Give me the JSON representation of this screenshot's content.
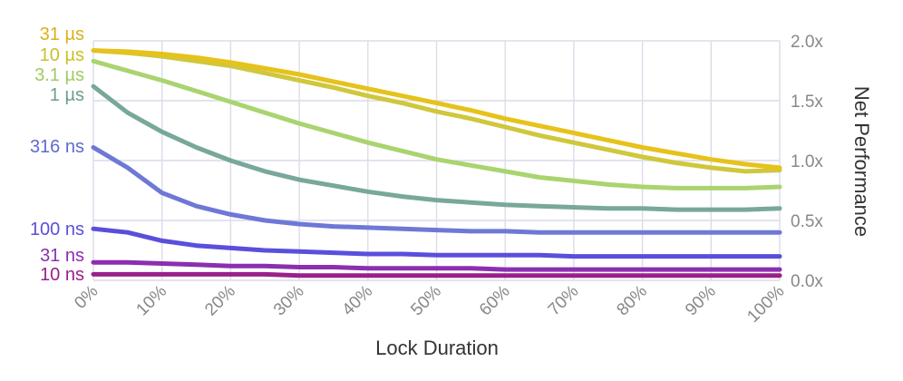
{
  "chart_data": {
    "type": "line",
    "xlabel": "Lock Duration",
    "ylabel": "Net Performance",
    "x_unit": "percent",
    "x": [
      0,
      5,
      10,
      15,
      20,
      25,
      30,
      35,
      40,
      45,
      50,
      55,
      60,
      65,
      70,
      75,
      80,
      85,
      90,
      95,
      100
    ],
    "x_tick_labels": [
      "0%",
      "10%",
      "20%",
      "30%",
      "40%",
      "50%",
      "60%",
      "70%",
      "80%",
      "90%",
      "100%"
    ],
    "y_tick_labels": [
      "0.0x",
      "0.5x",
      "1.0x",
      "1.5x",
      "2.0x"
    ],
    "ylim": [
      0,
      2.0
    ],
    "grid": true,
    "series": [
      {
        "name": "31 µs",
        "color": "#e6c21b",
        "values": [
          1.92,
          1.91,
          1.89,
          1.86,
          1.82,
          1.77,
          1.72,
          1.66,
          1.6,
          1.54,
          1.48,
          1.42,
          1.35,
          1.29,
          1.23,
          1.17,
          1.11,
          1.06,
          1.01,
          0.97,
          0.94
        ]
      },
      {
        "name": "10 µs",
        "color": "#cfc73c",
        "values": [
          1.92,
          1.9,
          1.87,
          1.83,
          1.79,
          1.73,
          1.67,
          1.61,
          1.54,
          1.48,
          1.41,
          1.35,
          1.28,
          1.21,
          1.15,
          1.09,
          1.03,
          0.98,
          0.94,
          0.91,
          0.92
        ]
      },
      {
        "name": "3.1 µs",
        "color": "#a9d46f",
        "values": [
          1.83,
          1.75,
          1.67,
          1.58,
          1.49,
          1.4,
          1.31,
          1.23,
          1.15,
          1.08,
          1.01,
          0.96,
          0.91,
          0.86,
          0.83,
          0.8,
          0.78,
          0.77,
          0.77,
          0.77,
          0.78
        ]
      },
      {
        "name": "1 µs",
        "color": "#78a89a",
        "values": [
          1.62,
          1.4,
          1.24,
          1.11,
          1.0,
          0.91,
          0.84,
          0.79,
          0.74,
          0.7,
          0.67,
          0.65,
          0.63,
          0.62,
          0.61,
          0.6,
          0.6,
          0.59,
          0.59,
          0.59,
          0.6
        ]
      },
      {
        "name": "316 ns",
        "color": "#6e78d6",
        "values": [
          1.11,
          0.94,
          0.73,
          0.62,
          0.55,
          0.5,
          0.47,
          0.45,
          0.44,
          0.43,
          0.42,
          0.41,
          0.41,
          0.4,
          0.4,
          0.4,
          0.4,
          0.4,
          0.4,
          0.4,
          0.4
        ]
      },
      {
        "name": "100 ns",
        "color": "#5a4fdc",
        "values": [
          0.43,
          0.4,
          0.33,
          0.29,
          0.27,
          0.25,
          0.24,
          0.23,
          0.22,
          0.22,
          0.21,
          0.21,
          0.21,
          0.21,
          0.2,
          0.2,
          0.2,
          0.2,
          0.2,
          0.2,
          0.2
        ]
      },
      {
        "name": "31 ns",
        "color": "#8b2fb0",
        "values": [
          0.15,
          0.15,
          0.14,
          0.13,
          0.12,
          0.12,
          0.11,
          0.11,
          0.1,
          0.1,
          0.1,
          0.1,
          0.09,
          0.09,
          0.09,
          0.09,
          0.09,
          0.09,
          0.09,
          0.09,
          0.09
        ]
      },
      {
        "name": "10 ns",
        "color": "#9a2088",
        "values": [
          0.05,
          0.05,
          0.05,
          0.05,
          0.05,
          0.05,
          0.04,
          0.04,
          0.04,
          0.04,
          0.04,
          0.04,
          0.04,
          0.04,
          0.04,
          0.04,
          0.04,
          0.04,
          0.04,
          0.04,
          0.04
        ]
      }
    ],
    "series_label_colors": [
      "#d6b318",
      "#c8c227",
      "#9fcc62",
      "#6f9b8e",
      "#5f6ad0",
      "#5a4fdc",
      "#8b2fb0",
      "#9a2088"
    ]
  }
}
